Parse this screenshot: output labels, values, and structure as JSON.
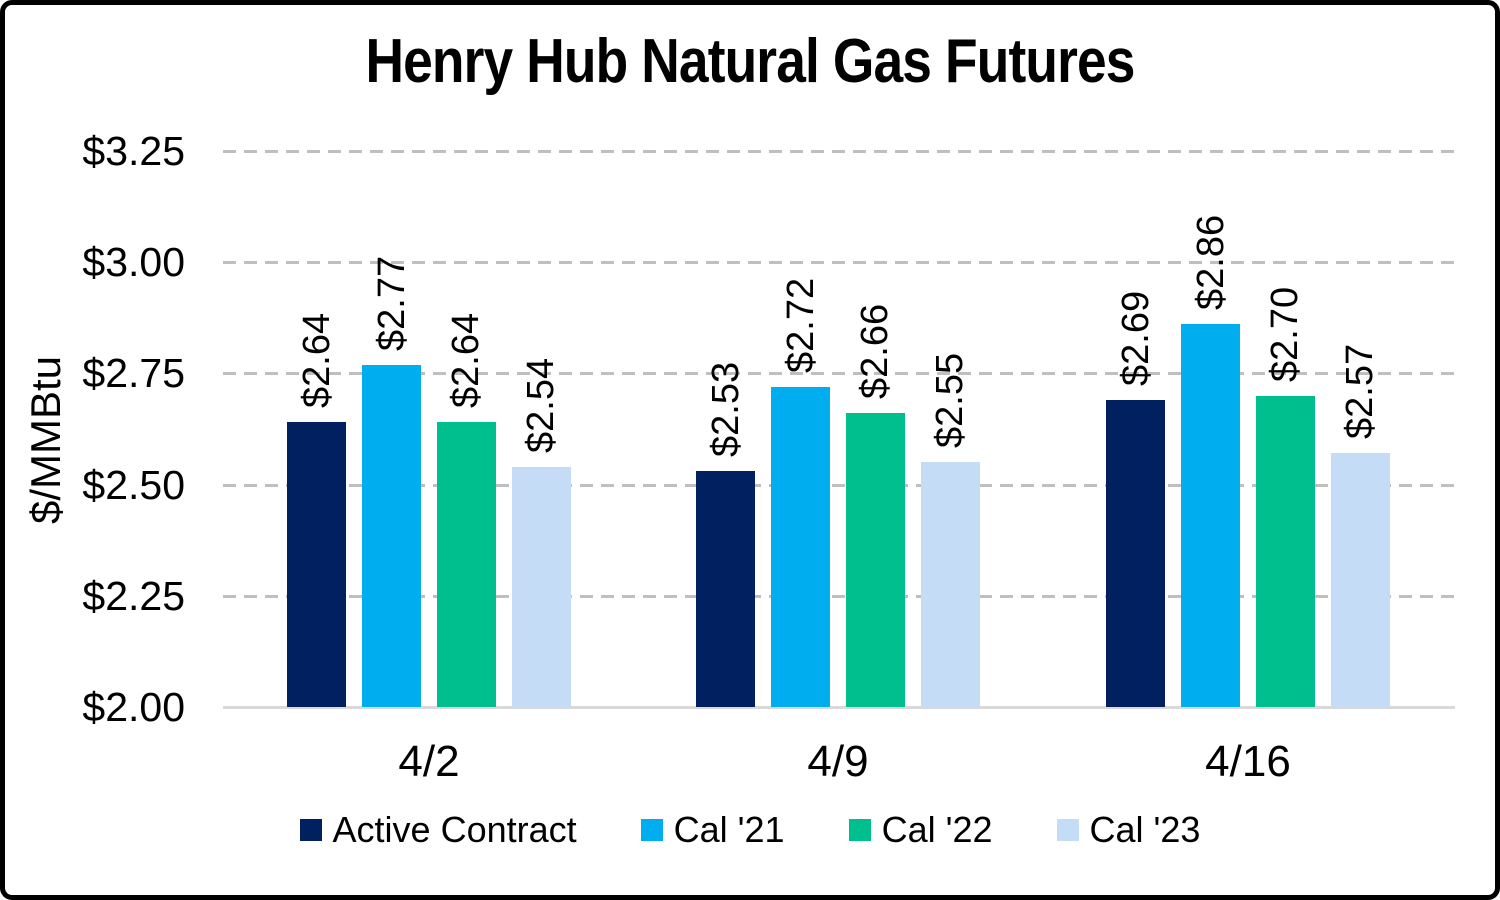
{
  "chart_data": {
    "type": "bar",
    "title": "Henry Hub Natural Gas Futures",
    "ylabel": "$/MMBtu",
    "xlabel": "",
    "categories": [
      "4/2",
      "4/9",
      "4/16"
    ],
    "series": [
      {
        "name": "Active Contract",
        "color": "#002060",
        "values": [
          2.64,
          2.53,
          2.69
        ],
        "labels": [
          "$2.64",
          "$2.53",
          "$2.69"
        ]
      },
      {
        "name": "Cal '21",
        "color": "#00AEEF",
        "values": [
          2.77,
          2.72,
          2.86
        ],
        "labels": [
          "$2.77",
          "$2.72",
          "$2.86"
        ]
      },
      {
        "name": "Cal '22",
        "color": "#00BF8F",
        "values": [
          2.64,
          2.66,
          2.7
        ],
        "labels": [
          "$2.64",
          "$2.66",
          "$2.70"
        ]
      },
      {
        "name": "Cal '23",
        "color": "#C4DCF5",
        "values": [
          2.54,
          2.55,
          2.57
        ],
        "labels": [
          "$2.54",
          "$2.55",
          "$2.57"
        ]
      }
    ],
    "ylim": [
      2.0,
      3.25
    ],
    "ytick_labels": [
      "$3.25",
      "$3.00",
      "$2.75",
      "$2.50",
      "$2.25",
      "$2.00"
    ],
    "ytick_values": [
      3.25,
      3.0,
      2.75,
      2.5,
      2.25,
      2.0
    ],
    "grid": "horizontal-dashed",
    "legend_position": "bottom",
    "colors": {
      "gridline": "#BFBFBF",
      "axis_line": "#D9D9D9",
      "text": "#000000",
      "background": "#FFFFFF",
      "border": "#000000"
    }
  }
}
